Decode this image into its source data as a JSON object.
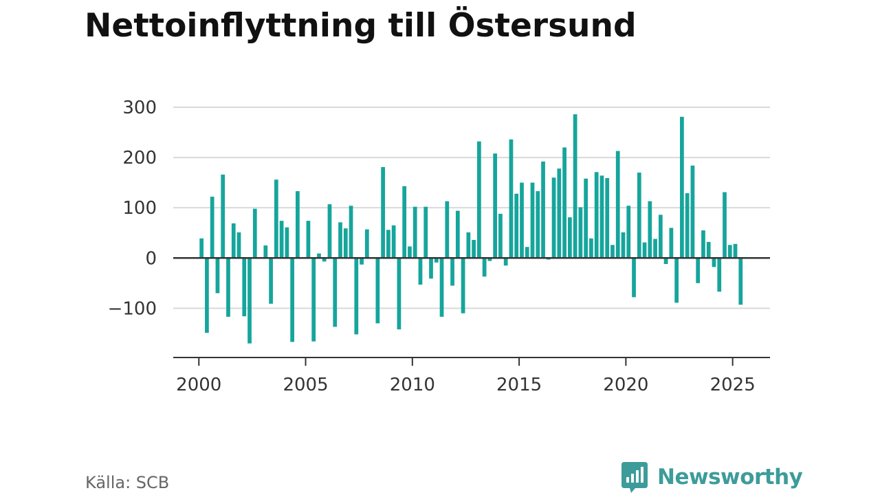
{
  "chart_data": {
    "type": "bar",
    "title": "Nettoinflyttning till Östersund",
    "xlabel": "",
    "ylabel": "",
    "bar_color": "#16a59c",
    "grid": true,
    "xlim": [
      1998.8,
      2026.75
    ],
    "ylim": [
      -198,
      300
    ],
    "yticks": [
      300,
      200,
      100,
      0,
      -100
    ],
    "ytick_labels": [
      "300",
      "200",
      "100",
      "0",
      "−100"
    ],
    "xticks": [
      2000,
      2005,
      2010,
      2015,
      2020,
      2025
    ],
    "xtick_labels": [
      "2000",
      "2005",
      "2010",
      "2015",
      "2020",
      "2025"
    ],
    "x_start": 2000.125,
    "x_step": 0.25,
    "values": [
      39,
      -149,
      122,
      -70,
      166,
      -117,
      69,
      51,
      -116,
      -170,
      98,
      0,
      25,
      -91,
      156,
      74,
      61,
      -167,
      133,
      0,
      74,
      -166,
      9,
      -7,
      107,
      -137,
      71,
      59,
      104,
      -152,
      -13,
      57,
      0,
      -130,
      181,
      56,
      65,
      -142,
      143,
      23,
      102,
      -53,
      102,
      -41,
      -9,
      -117,
      113,
      -55,
      94,
      -110,
      51,
      36,
      232,
      -37,
      -6,
      208,
      88,
      -15,
      236,
      128,
      150,
      22,
      150,
      133,
      192,
      -3,
      160,
      178,
      220,
      81,
      286,
      101,
      158,
      39,
      171,
      164,
      159,
      26,
      213,
      51,
      104,
      -78,
      170,
      31,
      113,
      38,
      86,
      -12,
      60,
      -89,
      281,
      129,
      184,
      -50,
      55,
      32,
      -18,
      -67,
      131,
      26,
      28,
      -93
    ]
  },
  "source": "Källa: SCB",
  "brand": {
    "name": "Newsworthy",
    "icon": "bar-chart-speech-bubble-icon",
    "color": "#3d9c9a"
  }
}
